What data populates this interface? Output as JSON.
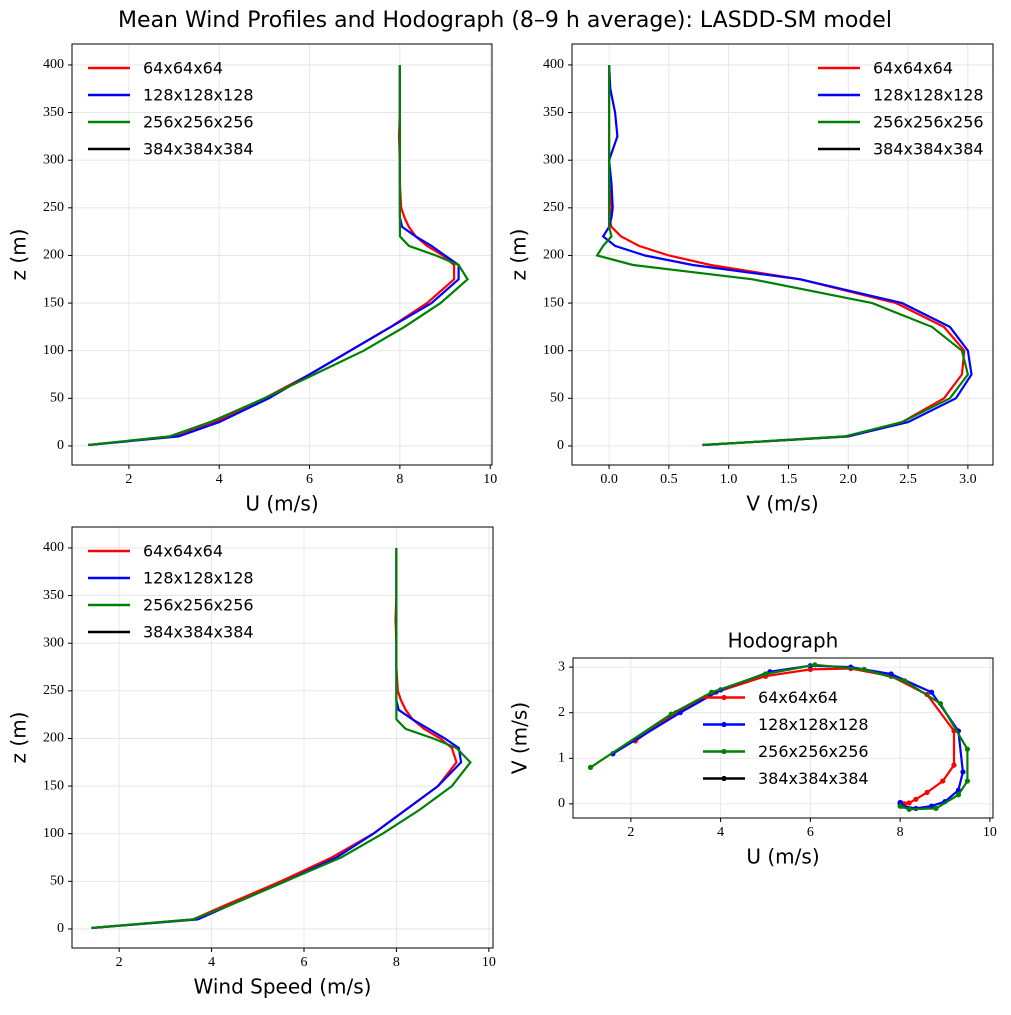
{
  "title": "Mean Wind Profiles and Hodograph (8–9 h average): LASDD-SM model",
  "chart_data": [
    {
      "type": "line",
      "xlabel": "U (m/s)",
      "ylabel": "z (m)",
      "y": [
        1,
        10,
        25,
        50,
        75,
        100,
        125,
        150,
        175,
        190,
        200,
        210,
        220,
        230,
        240,
        250,
        275,
        300,
        325,
        350,
        375,
        400
      ],
      "series": [
        {
          "name": "64x64x64",
          "color": "#ff0000",
          "values": [
            1.1,
            3.0,
            3.9,
            5.0,
            6.0,
            6.9,
            7.8,
            8.6,
            9.2,
            9.2,
            8.95,
            8.6,
            8.35,
            8.2,
            8.1,
            8.03,
            8.0,
            8.0,
            7.98,
            8.0,
            8.0,
            8.0
          ]
        },
        {
          "name": "128x128x128",
          "color": "#0000ff",
          "values": [
            1.1,
            3.1,
            4.0,
            5.1,
            6.0,
            6.9,
            7.8,
            8.7,
            9.3,
            9.3,
            9.0,
            8.7,
            8.35,
            8.05,
            8.0,
            8.0,
            8.0,
            8.0,
            8.0,
            8.0,
            8.0,
            8.0
          ]
        },
        {
          "name": "256x256x256",
          "color": "#008000",
          "values": [
            1.1,
            2.9,
            3.8,
            5.0,
            6.1,
            7.2,
            8.1,
            8.9,
            9.5,
            9.3,
            8.8,
            8.2,
            8.0,
            8.0,
            8.0,
            8.0,
            8.0,
            8.0,
            8.0,
            8.0,
            8.0,
            8.0
          ]
        },
        {
          "name": "384x384x384",
          "color": "#000000",
          "values": [
            null,
            null,
            null,
            null,
            null,
            null,
            null,
            null,
            null,
            null,
            null,
            null,
            null,
            null,
            null,
            null,
            null,
            null,
            null,
            null,
            null,
            null
          ]
        }
      ],
      "xlim": [
        0.74,
        10.04
      ],
      "ylim": [
        -20,
        422
      ],
      "xticks": [
        2,
        4,
        6,
        8,
        10
      ],
      "yticks": [
        0,
        50,
        100,
        150,
        200,
        250,
        300,
        350,
        400
      ],
      "grid": true,
      "legend": "upper left"
    },
    {
      "type": "line",
      "xlabel": "V (m/s)",
      "ylabel": "z (m)",
      "y": [
        1,
        10,
        25,
        50,
        75,
        100,
        125,
        150,
        175,
        190,
        200,
        210,
        220,
        230,
        240,
        250,
        275,
        300,
        325,
        350,
        375,
        400
      ],
      "series": [
        {
          "name": "64x64x64",
          "color": "#ff0000",
          "values": [
            0.78,
            2.0,
            2.45,
            2.8,
            2.95,
            2.97,
            2.8,
            2.4,
            1.6,
            0.85,
            0.5,
            0.25,
            0.1,
            0.02,
            0.0,
            0.02,
            0.0,
            0.0,
            0.0,
            0.0,
            0.0,
            0.0
          ]
        },
        {
          "name": "128x128x128",
          "color": "#0000ff",
          "values": [
            0.78,
            2.0,
            2.5,
            2.9,
            3.03,
            3.0,
            2.85,
            2.45,
            1.6,
            0.7,
            0.3,
            0.05,
            -0.05,
            0.0,
            0.02,
            0.03,
            0.02,
            0.0,
            0.07,
            0.05,
            0.01,
            0.0
          ]
        },
        {
          "name": "256x256x256",
          "color": "#008000",
          "values": [
            0.78,
            1.97,
            2.45,
            2.85,
            3.0,
            2.95,
            2.7,
            2.2,
            1.2,
            0.2,
            -0.1,
            -0.05,
            0.02,
            0.0,
            0.0,
            0.0,
            0.0,
            0.0,
            0.0,
            0.0,
            0.0,
            0.0
          ]
        },
        {
          "name": "384x384x384",
          "color": "#000000",
          "values": [
            null,
            null,
            null,
            null,
            null,
            null,
            null,
            null,
            null,
            null,
            null,
            null,
            null,
            null,
            null,
            null,
            null,
            null,
            null,
            null,
            null,
            null
          ]
        }
      ],
      "xlim": [
        -0.31,
        3.21
      ],
      "ylim": [
        -20,
        422
      ],
      "xticks": [
        {
          "value": 0,
          "label": "0.0"
        },
        0.5,
        {
          "value": 1,
          "label": "1.0"
        },
        1.5,
        {
          "value": 2,
          "label": "2.0"
        },
        2.5,
        {
          "value": 3,
          "label": "3.0"
        }
      ],
      "yticks": [
        0,
        50,
        100,
        150,
        200,
        250,
        300,
        350,
        400
      ],
      "grid": true,
      "legend": "upper right"
    },
    {
      "type": "line",
      "xlabel": "Wind Speed (m/s)",
      "ylabel": "z (m)",
      "y": [
        1,
        10,
        25,
        50,
        75,
        100,
        125,
        150,
        175,
        190,
        200,
        210,
        220,
        230,
        240,
        250,
        275,
        300,
        325,
        350,
        375,
        400
      ],
      "series": [
        {
          "name": "64x64x64",
          "color": "#ff0000",
          "values": [
            1.4,
            3.6,
            4.3,
            5.5,
            6.6,
            7.5,
            8.2,
            8.9,
            9.3,
            9.2,
            8.95,
            8.6,
            8.35,
            8.2,
            8.1,
            8.03,
            8.0,
            8.0,
            7.98,
            8.0,
            8.0,
            8.0
          ]
        },
        {
          "name": "128x128x128",
          "color": "#0000ff",
          "values": [
            1.4,
            3.7,
            4.4,
            5.6,
            6.7,
            7.5,
            8.2,
            8.9,
            9.4,
            9.35,
            9.05,
            8.7,
            8.35,
            8.05,
            8.0,
            8.0,
            8.0,
            8.0,
            8.0,
            8.0,
            8.0,
            8.0
          ]
        },
        {
          "name": "256x256x256",
          "color": "#008000",
          "values": [
            1.4,
            3.6,
            4.4,
            5.6,
            6.8,
            7.7,
            8.5,
            9.2,
            9.6,
            9.3,
            8.8,
            8.2,
            8.0,
            8.0,
            8.0,
            8.0,
            8.0,
            8.0,
            8.0,
            8.0,
            8.0,
            8.0
          ]
        },
        {
          "name": "384x384x384",
          "color": "#000000",
          "values": [
            null,
            null,
            null,
            null,
            null,
            null,
            null,
            null,
            null,
            null,
            null,
            null,
            null,
            null,
            null,
            null,
            null,
            null,
            null,
            null,
            null,
            null
          ]
        }
      ],
      "xlim": [
        0.98,
        10.09
      ],
      "ylim": [
        -20,
        422
      ],
      "xticks": [
        2,
        4,
        6,
        8,
        10
      ],
      "yticks": [
        0,
        50,
        100,
        150,
        200,
        250,
        300,
        350,
        400
      ],
      "grid": true,
      "legend": "upper left"
    },
    {
      "type": "line",
      "title": "Hodograph",
      "xlabel": "U (m/s)",
      "ylabel": "V (m/s)",
      "marker": "o",
      "series": [
        {
          "name": "64x64x64",
          "color": "#ff0000",
          "x": [
            2.1,
            3.0,
            3.9,
            5.0,
            6.0,
            6.9,
            7.8,
            8.6,
            9.2,
            9.2,
            8.95,
            8.6,
            8.35,
            8.2,
            8.1,
            8.03,
            8.0
          ],
          "values": [
            1.38,
            2.0,
            2.45,
            2.8,
            2.95,
            2.97,
            2.8,
            2.4,
            1.6,
            0.85,
            0.5,
            0.25,
            0.1,
            0.02,
            0.0,
            0.02,
            0.0
          ]
        },
        {
          "name": "128x128x128",
          "color": "#0000ff",
          "x": [
            1.6,
            3.1,
            4.0,
            5.1,
            6.0,
            6.9,
            7.8,
            8.7,
            9.3,
            9.4,
            9.3,
            9.0,
            8.7,
            8.35,
            8.05,
            8.0,
            8.0
          ],
          "values": [
            1.1,
            2.0,
            2.5,
            2.9,
            3.03,
            3.0,
            2.85,
            2.45,
            1.6,
            0.7,
            0.3,
            0.05,
            -0.05,
            -0.1,
            -0.05,
            0.0,
            0.03
          ]
        },
        {
          "name": "256x256x256",
          "color": "#008000",
          "x": [
            1.1,
            2.9,
            3.8,
            5.0,
            6.1,
            7.2,
            8.1,
            8.9,
            9.5,
            9.5,
            9.3,
            8.8,
            8.2,
            8.0
          ],
          "values": [
            0.8,
            1.97,
            2.45,
            2.85,
            3.05,
            2.95,
            2.7,
            2.2,
            1.2,
            0.5,
            0.2,
            -0.1,
            -0.12,
            -0.05
          ]
        },
        {
          "name": "384x384x384",
          "color": "#000000",
          "x": [
            null
          ],
          "values": [
            null
          ]
        }
      ],
      "xlim": [
        0.71,
        10.07
      ],
      "ylim": [
        -0.31,
        3.2
      ],
      "xticks": [
        2,
        4,
        6,
        8,
        10
      ],
      "yticks": [
        0,
        1,
        2,
        3
      ],
      "grid": true,
      "legend": "center"
    }
  ]
}
